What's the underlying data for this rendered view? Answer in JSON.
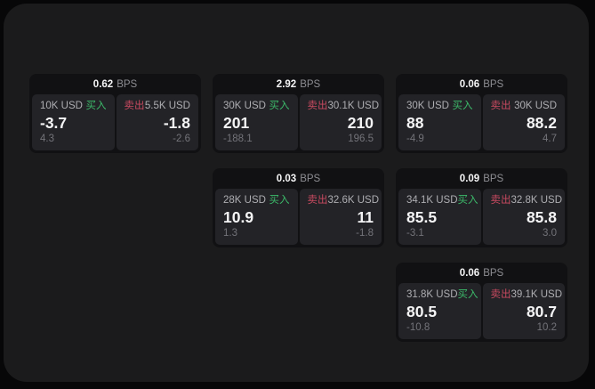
{
  "theme": {
    "page_bg": "#070708",
    "surface_bg": "#1b1b1c",
    "card_bg": "#111113",
    "panel_bg": "#232327",
    "buy_green": "#3cba6a",
    "sell_red": "#c84a60",
    "text_primary": "#f4f4f5",
    "text_secondary": "#aeaeb2",
    "text_muted": "#737379"
  },
  "labels": {
    "bps_unit": "BPS",
    "buy": "买入",
    "sell": "卖出"
  },
  "cards": [
    {
      "bps": "0.62",
      "buy": {
        "amount": "10K USD",
        "price": "-3.7",
        "delta": "4.3"
      },
      "sell": {
        "amount": "5.5K USD",
        "price": "-1.8",
        "delta": "-2.6"
      }
    },
    {
      "bps": "2.92",
      "buy": {
        "amount": "30K USD",
        "price": "201",
        "delta": "-188.1"
      },
      "sell": {
        "amount": "30.1K USD",
        "price": "210",
        "delta": "196.5"
      }
    },
    {
      "bps": "0.06",
      "buy": {
        "amount": "30K USD",
        "price": "88",
        "delta": "-4.9"
      },
      "sell": {
        "amount": "30K USD",
        "price": "88.2",
        "delta": "4.7"
      }
    },
    {
      "bps": "0.03",
      "buy": {
        "amount": "28K USD",
        "price": "10.9",
        "delta": "1.3"
      },
      "sell": {
        "amount": "32.6K USD",
        "price": "11",
        "delta": "-1.8"
      }
    },
    {
      "bps": "0.09",
      "buy": {
        "amount": "34.1K USD",
        "price": "85.5",
        "delta": "-3.1"
      },
      "sell": {
        "amount": "32.8K USD",
        "price": "85.8",
        "delta": "3.0"
      }
    },
    {
      "bps": "0.06",
      "buy": {
        "amount": "31.8K USD",
        "price": "80.5",
        "delta": "-10.8"
      },
      "sell": {
        "amount": "39.1K USD",
        "price": "80.7",
        "delta": "10.2"
      }
    }
  ]
}
